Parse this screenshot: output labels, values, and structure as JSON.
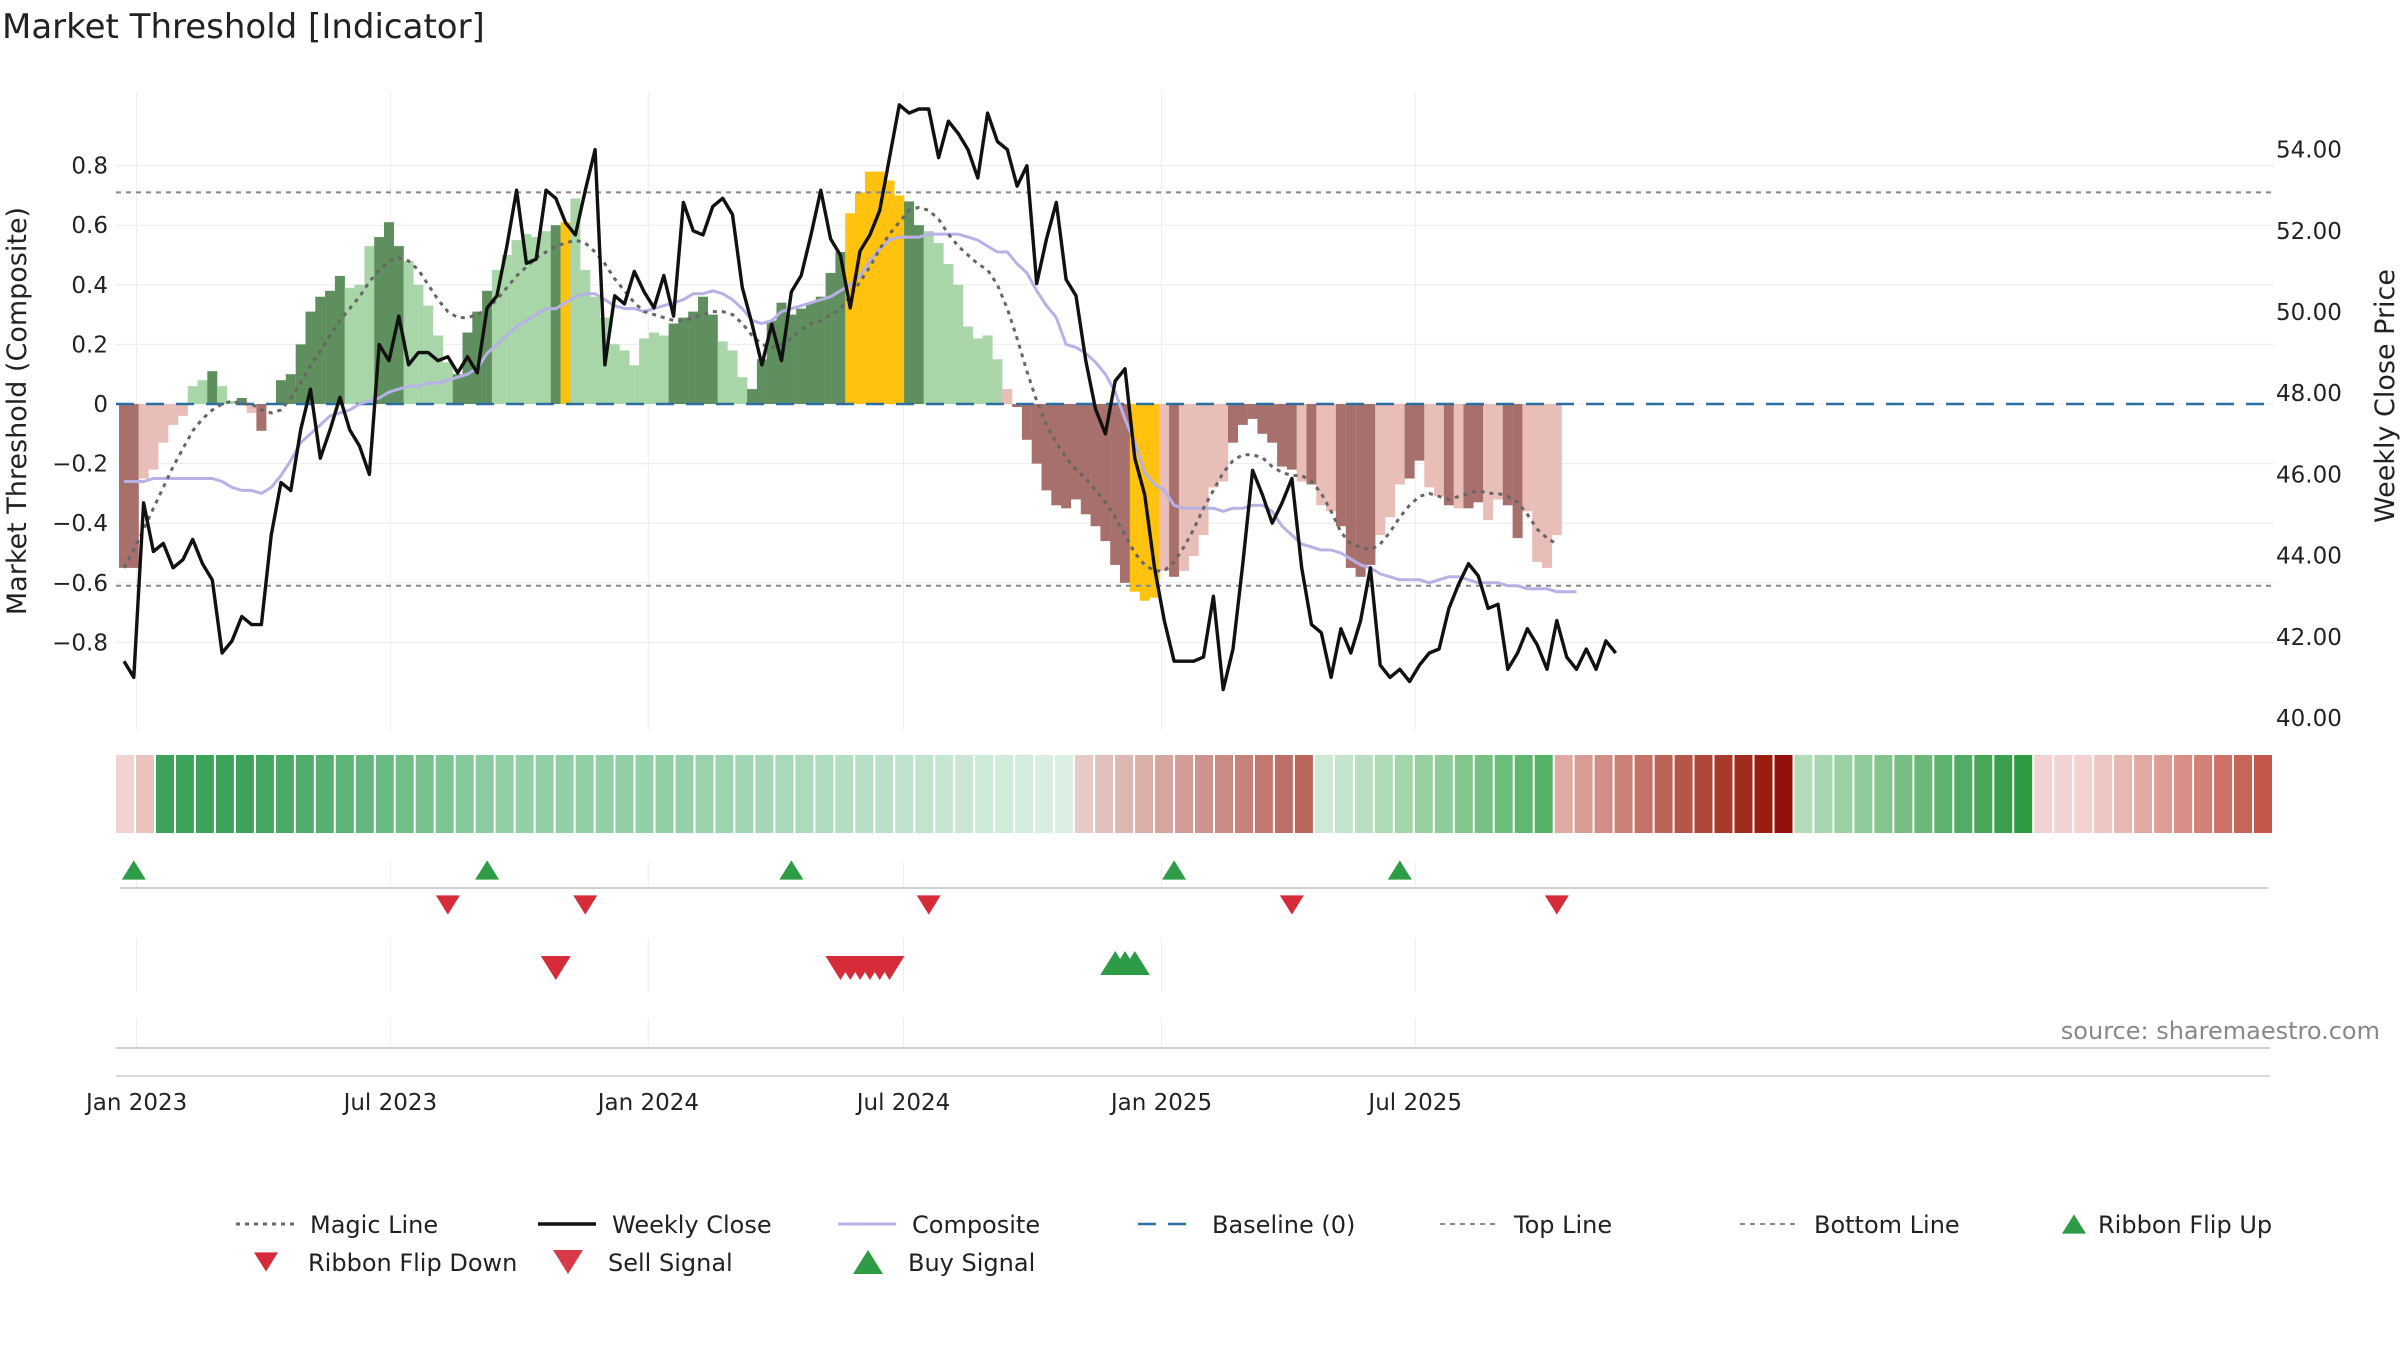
{
  "title": "Market Threshold [Indicator]",
  "source": "source: sharemaestro.com",
  "colors": {
    "strong_green": "#5f8f5f",
    "light_green": "#a9d6a9",
    "strong_red": "#a8706c",
    "light_red": "#e9bdb8",
    "yellow": "#ffc20e",
    "close": "#111111",
    "composite": "#b7b1e6",
    "magic": "#666666",
    "baseline": "#2c6f9e",
    "topbottom": "#888888",
    "up": "#2e9c47",
    "down": "#d62c3a"
  },
  "chart_data": {
    "type": "bar",
    "x_axis": {
      "ticks": [
        "Jan 2023",
        "Jul 2023",
        "Jan 2024",
        "Jul 2024",
        "Jan 2025",
        "Jul 2025"
      ]
    },
    "y_left": {
      "label": "Market Threshold (Composite)",
      "ticks": [
        "0.8",
        "0.6",
        "0.4",
        "0.2",
        "0",
        "−0.2",
        "−0.4",
        "−0.6",
        "−0.8"
      ],
      "range": [
        -0.88,
        0.88
      ]
    },
    "y_right": {
      "label": "Weekly Close Price",
      "ticks": [
        "54.00",
        "52.00",
        "50.00",
        "48.00",
        "46.00",
        "44.00",
        "42.00",
        "40.00"
      ],
      "range": [
        40.0,
        54.5
      ]
    },
    "start_date": "2022-12-23",
    "top_line": 0.71,
    "bottom_line": -0.61,
    "bars": [
      -0.55,
      -0.55,
      -0.25,
      -0.22,
      -0.13,
      -0.07,
      -0.04,
      0.06,
      0.08,
      0.11,
      0.06,
      0.01,
      0.02,
      -0.03,
      -0.09,
      0.0,
      0.08,
      0.1,
      0.2,
      0.31,
      0.36,
      0.38,
      0.43,
      0.39,
      0.4,
      0.53,
      0.56,
      0.61,
      0.53,
      0.48,
      0.4,
      0.33,
      0.23,
      0.14,
      0.1,
      0.24,
      0.31,
      0.38,
      0.45,
      0.5,
      0.55,
      0.57,
      0.56,
      0.58,
      0.6,
      0.61,
      0.69,
      0.45,
      0.36,
      0.29,
      0.2,
      0.18,
      0.13,
      0.22,
      0.24,
      0.23,
      0.27,
      0.29,
      0.31,
      0.36,
      0.3,
      0.21,
      0.18,
      0.09,
      0.05,
      0.15,
      0.28,
      0.34,
      0.3,
      0.32,
      0.34,
      0.36,
      0.44,
      0.51,
      0.64,
      0.71,
      0.78,
      0.78,
      0.75,
      0.7,
      0.68,
      0.6,
      0.58,
      0.54,
      0.47,
      0.4,
      0.26,
      0.22,
      0.23,
      0.15,
      0.05,
      -0.01,
      -0.12,
      -0.2,
      -0.29,
      -0.34,
      -0.35,
      -0.32,
      -0.37,
      -0.41,
      -0.46,
      -0.54,
      -0.6,
      -0.63,
      -0.66,
      -0.65,
      -0.56,
      -0.58,
      -0.56,
      -0.51,
      -0.44,
      -0.28,
      -0.26,
      -0.13,
      -0.07,
      -0.05,
      -0.1,
      -0.13,
      -0.21,
      -0.22,
      -0.26,
      -0.27,
      -0.34,
      -0.36,
      -0.41,
      -0.55,
      -0.58,
      -0.54,
      -0.44,
      -0.38,
      -0.27,
      -0.25,
      -0.19,
      -0.28,
      -0.31,
      -0.34,
      -0.35,
      -0.35,
      -0.33,
      -0.39,
      -0.32,
      -0.34,
      -0.45,
      -0.36,
      -0.53,
      -0.55,
      -0.44
    ],
    "bar_colors": "RRLLLLLGGGGGGLRGGGGGGGGGGGGGGGGGGGGGGGGGGGGGGYGGGGGGGGGGGGGGGGGGGGGGGGGGGGYYYYYYGGGGGGGGGGLRRRRRRRRRRRRYYYLRLLLLLRRRRRRRLRLLRRRRLLLRRLLRLRRLLRRLL",
    "bar_strength": "SSLLLLLLLSLLSLSLSSSSSSSLLLSSSLLLLLSSSSLLLLLLSLLLLLLLLLLLSSSSSLLLSSSSSSSSSSSSSSSSSSLLLLLLLLLLSSSSSSSSSSSSSSSSSLSLLLLSSSSLSSSSSSSSLLSSLLSSLLSSSSSSS",
    "weekly_close": [
      41.4,
      41.0,
      45.3,
      44.1,
      44.3,
      43.7,
      43.9,
      44.4,
      43.8,
      43.4,
      41.6,
      41.9,
      42.5,
      42.3,
      42.3,
      44.5,
      45.8,
      45.6,
      47.1,
      48.1,
      46.4,
      47.1,
      47.9,
      47.1,
      46.7,
      46.0,
      49.2,
      48.8,
      49.9,
      48.7,
      49.0,
      49.0,
      48.8,
      48.9,
      48.5,
      48.9,
      48.5,
      50.1,
      50.4,
      51.6,
      53.0,
      51.2,
      51.3,
      53.0,
      52.8,
      52.2,
      51.9,
      53.0,
      54.0,
      48.7,
      50.4,
      50.2,
      51.0,
      50.5,
      50.1,
      50.9,
      49.9,
      52.7,
      52.0,
      51.9,
      52.6,
      52.8,
      52.4,
      50.6,
      49.7,
      48.7,
      49.7,
      48.8,
      50.5,
      50.9,
      51.9,
      53.0,
      51.8,
      51.4,
      50.1,
      51.5,
      51.9,
      52.5,
      53.8,
      55.1,
      54.9,
      55.0,
      55.0,
      53.8,
      54.7,
      54.4,
      54.0,
      53.3,
      54.9,
      54.2,
      54.0,
      53.1,
      53.6,
      50.7,
      51.8,
      52.7,
      50.8,
      50.4,
      48.8,
      47.6,
      47.0,
      48.3,
      48.6,
      46.4,
      45.5,
      43.7,
      42.4,
      41.4,
      41.4,
      41.4,
      41.5,
      43.0,
      40.7,
      41.7,
      43.8,
      46.1,
      45.5,
      44.8,
      45.3,
      45.9,
      43.7,
      42.3,
      42.1,
      41.0,
      42.2,
      41.6,
      42.4,
      43.7,
      41.3,
      41.0,
      41.2,
      40.9,
      41.3,
      41.6,
      41.7,
      42.7,
      43.3,
      43.8,
      43.5,
      42.7,
      42.8,
      41.2,
      41.6,
      42.2,
      41.8,
      41.2,
      42.4,
      41.5,
      41.2,
      41.7,
      41.2,
      41.9,
      41.6
    ],
    "composite_line": [
      -0.26,
      -0.26,
      -0.26,
      -0.25,
      -0.25,
      -0.25,
      -0.25,
      -0.25,
      -0.25,
      -0.25,
      -0.26,
      -0.28,
      -0.29,
      -0.29,
      -0.3,
      -0.28,
      -0.24,
      -0.19,
      -0.13,
      -0.1,
      -0.07,
      -0.04,
      -0.03,
      -0.02,
      -0.0,
      0.01,
      0.02,
      0.04,
      0.05,
      0.06,
      0.06,
      0.07,
      0.07,
      0.08,
      0.09,
      0.1,
      0.12,
      0.17,
      0.2,
      0.23,
      0.26,
      0.28,
      0.3,
      0.32,
      0.32,
      0.34,
      0.36,
      0.37,
      0.37,
      0.35,
      0.33,
      0.32,
      0.32,
      0.31,
      0.32,
      0.33,
      0.34,
      0.35,
      0.37,
      0.37,
      0.38,
      0.37,
      0.35,
      0.32,
      0.28,
      0.27,
      0.28,
      0.31,
      0.32,
      0.33,
      0.34,
      0.35,
      0.36,
      0.38,
      0.4,
      0.43,
      0.48,
      0.52,
      0.55,
      0.56,
      0.56,
      0.56,
      0.57,
      0.57,
      0.57,
      0.57,
      0.56,
      0.55,
      0.53,
      0.51,
      0.51,
      0.47,
      0.44,
      0.38,
      0.33,
      0.29,
      0.2,
      0.19,
      0.17,
      0.14,
      0.1,
      0.04,
      -0.05,
      -0.13,
      -0.23,
      -0.27,
      -0.29,
      -0.34,
      -0.35,
      -0.35,
      -0.35,
      -0.35,
      -0.36,
      -0.35,
      -0.35,
      -0.34,
      -0.34,
      -0.36,
      -0.41,
      -0.44,
      -0.47,
      -0.48,
      -0.49,
      -0.49,
      -0.5,
      -0.52,
      -0.54,
      -0.55,
      -0.57,
      -0.58,
      -0.59,
      -0.59,
      -0.59,
      -0.6,
      -0.59,
      -0.58,
      -0.58,
      -0.59,
      -0.6,
      -0.6,
      -0.6,
      -0.61,
      -0.61,
      -0.62,
      -0.62,
      -0.62,
      -0.63,
      -0.63,
      -0.63
    ],
    "magic_line": [
      -0.55,
      -0.49,
      -0.42,
      -0.35,
      -0.28,
      -0.21,
      -0.15,
      -0.09,
      -0.05,
      -0.02,
      0.0,
      0.01,
      0.0,
      -0.0,
      -0.02,
      -0.03,
      -0.02,
      0.02,
      0.07,
      0.13,
      0.18,
      0.23,
      0.28,
      0.32,
      0.36,
      0.41,
      0.45,
      0.48,
      0.49,
      0.48,
      0.45,
      0.4,
      0.35,
      0.31,
      0.29,
      0.29,
      0.3,
      0.32,
      0.35,
      0.39,
      0.43,
      0.46,
      0.49,
      0.51,
      0.53,
      0.54,
      0.55,
      0.54,
      0.51,
      0.47,
      0.42,
      0.38,
      0.34,
      0.31,
      0.3,
      0.29,
      0.28,
      0.28,
      0.29,
      0.3,
      0.31,
      0.31,
      0.3,
      0.27,
      0.23,
      0.2,
      0.19,
      0.2,
      0.22,
      0.25,
      0.27,
      0.28,
      0.3,
      0.32,
      0.36,
      0.41,
      0.46,
      0.52,
      0.57,
      0.61,
      0.65,
      0.66,
      0.65,
      0.62,
      0.57,
      0.53,
      0.5,
      0.47,
      0.45,
      0.4,
      0.32,
      0.22,
      0.11,
      0.01,
      -0.07,
      -0.13,
      -0.18,
      -0.22,
      -0.25,
      -0.29,
      -0.33,
      -0.38,
      -0.44,
      -0.5,
      -0.54,
      -0.56,
      -0.56,
      -0.53,
      -0.48,
      -0.42,
      -0.35,
      -0.29,
      -0.23,
      -0.19,
      -0.17,
      -0.17,
      -0.18,
      -0.21,
      -0.23,
      -0.24,
      -0.24,
      -0.26,
      -0.3,
      -0.36,
      -0.43,
      -0.47,
      -0.48,
      -0.49,
      -0.47,
      -0.43,
      -0.38,
      -0.34,
      -0.31,
      -0.3,
      -0.31,
      -0.32,
      -0.31,
      -0.3,
      -0.29,
      -0.3,
      -0.3,
      -0.31,
      -0.33,
      -0.37,
      -0.42,
      -0.45,
      -0.47
    ],
    "ribbon_colors": [
      "#f1d4d1",
      "#eac3bf",
      "#3da35a",
      "#3da35a",
      "#3da35a",
      "#3da35a",
      "#3da35a",
      "#44a660",
      "#4aaa66",
      "#50ad6c",
      "#57b071",
      "#5db477",
      "#64b77d",
      "#6aba83",
      "#71be89",
      "#78c18f",
      "#7ec595",
      "#85c89b",
      "#8bcba1",
      "#92cfa7",
      "#92cfa7",
      "#92cfa7",
      "#92cfa7",
      "#92cfa7",
      "#92cfa7",
      "#92cfa7",
      "#92cfa7",
      "#92cfa7",
      "#96d0aa",
      "#99d2ad",
      "#9dd4b0",
      "#a1d5b3",
      "#a4d7b6",
      "#a8d9b9",
      "#acdabc",
      "#afdcbf",
      "#b3dec2",
      "#b7dfc5",
      "#bae1c8",
      "#bee2cb",
      "#c2e4ce",
      "#c5e6d1",
      "#c9e7d4",
      "#cde9d7",
      "#d0ebda",
      "#d4ecdd",
      "#d8eee0",
      "#dcefe3",
      "#e5cac6",
      "#e1c1bc",
      "#ddb8b3",
      "#d9afa9",
      "#d5a6a0",
      "#d19d96",
      "#cd948d",
      "#c98b83",
      "#c5827a",
      "#c17970",
      "#bd7067",
      "#b9675d",
      "#cfe9d4",
      "#c4e4ca",
      "#b9dfc0",
      "#aedab6",
      "#a3d5ac",
      "#98d0a2",
      "#8dcb98",
      "#82c68e",
      "#77c184",
      "#6cbc7a",
      "#61b770",
      "#56b266",
      "#e0aaa4",
      "#d99c95",
      "#d28e86",
      "#cb8077",
      "#c47268",
      "#bd6459",
      "#b6564a",
      "#af483b",
      "#a83a2c",
      "#a12c1d",
      "#9a1e0e",
      "#93100f",
      "#b3dcbb",
      "#a7d6b0",
      "#9bd0a5",
      "#8fca9a",
      "#83c48f",
      "#77be84",
      "#6bb879",
      "#5fb26e",
      "#53ac63",
      "#47a658",
      "#3ba04d",
      "#2f9a42",
      "#f1d4d1",
      "#f1d4d1",
      "#f1d4d1",
      "#ecc6c2",
      "#e7b8b3",
      "#e2aaa4",
      "#dd9c95",
      "#d88e86",
      "#d38077",
      "#ce7268",
      "#c96459",
      "#c4564a"
    ],
    "ribbon_flip_up": [
      "2022-12-30",
      "2023-09-08",
      "2024-04-12",
      "2025-01-10",
      "2025-06-20"
    ],
    "ribbon_flip_down": [
      "2023-08-11",
      "2023-11-17",
      "2024-07-19",
      "2025-04-04",
      "2025-10-10"
    ],
    "sell_signals": [
      "2023-10-27",
      "2024-05-17",
      "2024-05-24",
      "2024-05-31",
      "2024-06-07",
      "2024-06-14",
      "2024-06-21"
    ],
    "buy_signals": [
      "2024-11-29",
      "2024-12-06",
      "2024-12-13"
    ]
  },
  "legend": [
    {
      "label": "Magic Line",
      "key": "dotted-dark"
    },
    {
      "label": "Weekly Close",
      "key": "solid-black"
    },
    {
      "label": "Composite",
      "key": "solid-lavender"
    },
    {
      "label": "Baseline (0)",
      "key": "dashed-blue"
    },
    {
      "label": "Top Line",
      "key": "dotted-gray"
    },
    {
      "label": "Bottom Line",
      "key": "dotted-gray"
    },
    {
      "label": "Ribbon Flip Up",
      "key": "triangle-up-green"
    },
    {
      "label": "Ribbon Flip Down",
      "key": "triangle-down-red"
    },
    {
      "label": "Sell Signal",
      "key": "triangle-down-crimson"
    },
    {
      "label": "Buy Signal",
      "key": "triangle-up-green-large"
    }
  ]
}
